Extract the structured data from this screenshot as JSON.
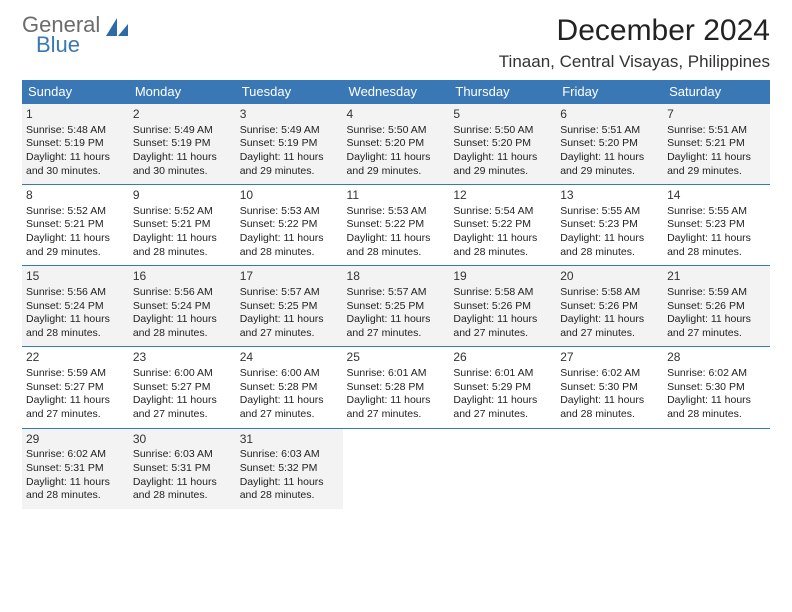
{
  "logo": {
    "general": "General",
    "blue": "Blue"
  },
  "title": "December 2024",
  "location": "Tinaan, Central Visayas, Philippines",
  "header_bg": "#3a78b5",
  "header_fg": "#ffffff",
  "row_alt_bg": "#f3f3f3",
  "border_color": "#3a78b5",
  "dayNames": [
    "Sunday",
    "Monday",
    "Tuesday",
    "Wednesday",
    "Thursday",
    "Friday",
    "Saturday"
  ],
  "weeks": [
    [
      {
        "n": "1",
        "sr": "5:48 AM",
        "ss": "5:19 PM",
        "dl": "11 hours and 30 minutes."
      },
      {
        "n": "2",
        "sr": "5:49 AM",
        "ss": "5:19 PM",
        "dl": "11 hours and 30 minutes."
      },
      {
        "n": "3",
        "sr": "5:49 AM",
        "ss": "5:19 PM",
        "dl": "11 hours and 29 minutes."
      },
      {
        "n": "4",
        "sr": "5:50 AM",
        "ss": "5:20 PM",
        "dl": "11 hours and 29 minutes."
      },
      {
        "n": "5",
        "sr": "5:50 AM",
        "ss": "5:20 PM",
        "dl": "11 hours and 29 minutes."
      },
      {
        "n": "6",
        "sr": "5:51 AM",
        "ss": "5:20 PM",
        "dl": "11 hours and 29 minutes."
      },
      {
        "n": "7",
        "sr": "5:51 AM",
        "ss": "5:21 PM",
        "dl": "11 hours and 29 minutes."
      }
    ],
    [
      {
        "n": "8",
        "sr": "5:52 AM",
        "ss": "5:21 PM",
        "dl": "11 hours and 29 minutes."
      },
      {
        "n": "9",
        "sr": "5:52 AM",
        "ss": "5:21 PM",
        "dl": "11 hours and 28 minutes."
      },
      {
        "n": "10",
        "sr": "5:53 AM",
        "ss": "5:22 PM",
        "dl": "11 hours and 28 minutes."
      },
      {
        "n": "11",
        "sr": "5:53 AM",
        "ss": "5:22 PM",
        "dl": "11 hours and 28 minutes."
      },
      {
        "n": "12",
        "sr": "5:54 AM",
        "ss": "5:22 PM",
        "dl": "11 hours and 28 minutes."
      },
      {
        "n": "13",
        "sr": "5:55 AM",
        "ss": "5:23 PM",
        "dl": "11 hours and 28 minutes."
      },
      {
        "n": "14",
        "sr": "5:55 AM",
        "ss": "5:23 PM",
        "dl": "11 hours and 28 minutes."
      }
    ],
    [
      {
        "n": "15",
        "sr": "5:56 AM",
        "ss": "5:24 PM",
        "dl": "11 hours and 28 minutes."
      },
      {
        "n": "16",
        "sr": "5:56 AM",
        "ss": "5:24 PM",
        "dl": "11 hours and 28 minutes."
      },
      {
        "n": "17",
        "sr": "5:57 AM",
        "ss": "5:25 PM",
        "dl": "11 hours and 27 minutes."
      },
      {
        "n": "18",
        "sr": "5:57 AM",
        "ss": "5:25 PM",
        "dl": "11 hours and 27 minutes."
      },
      {
        "n": "19",
        "sr": "5:58 AM",
        "ss": "5:26 PM",
        "dl": "11 hours and 27 minutes."
      },
      {
        "n": "20",
        "sr": "5:58 AM",
        "ss": "5:26 PM",
        "dl": "11 hours and 27 minutes."
      },
      {
        "n": "21",
        "sr": "5:59 AM",
        "ss": "5:26 PM",
        "dl": "11 hours and 27 minutes."
      }
    ],
    [
      {
        "n": "22",
        "sr": "5:59 AM",
        "ss": "5:27 PM",
        "dl": "11 hours and 27 minutes."
      },
      {
        "n": "23",
        "sr": "6:00 AM",
        "ss": "5:27 PM",
        "dl": "11 hours and 27 minutes."
      },
      {
        "n": "24",
        "sr": "6:00 AM",
        "ss": "5:28 PM",
        "dl": "11 hours and 27 minutes."
      },
      {
        "n": "25",
        "sr": "6:01 AM",
        "ss": "5:28 PM",
        "dl": "11 hours and 27 minutes."
      },
      {
        "n": "26",
        "sr": "6:01 AM",
        "ss": "5:29 PM",
        "dl": "11 hours and 27 minutes."
      },
      {
        "n": "27",
        "sr": "6:02 AM",
        "ss": "5:30 PM",
        "dl": "11 hours and 28 minutes."
      },
      {
        "n": "28",
        "sr": "6:02 AM",
        "ss": "5:30 PM",
        "dl": "11 hours and 28 minutes."
      }
    ],
    [
      {
        "n": "29",
        "sr": "6:02 AM",
        "ss": "5:31 PM",
        "dl": "11 hours and 28 minutes."
      },
      {
        "n": "30",
        "sr": "6:03 AM",
        "ss": "5:31 PM",
        "dl": "11 hours and 28 minutes."
      },
      {
        "n": "31",
        "sr": "6:03 AM",
        "ss": "5:32 PM",
        "dl": "11 hours and 28 minutes."
      },
      null,
      null,
      null,
      null
    ]
  ],
  "labels": {
    "sunrise": "Sunrise:",
    "sunset": "Sunset:",
    "daylight": "Daylight:"
  }
}
